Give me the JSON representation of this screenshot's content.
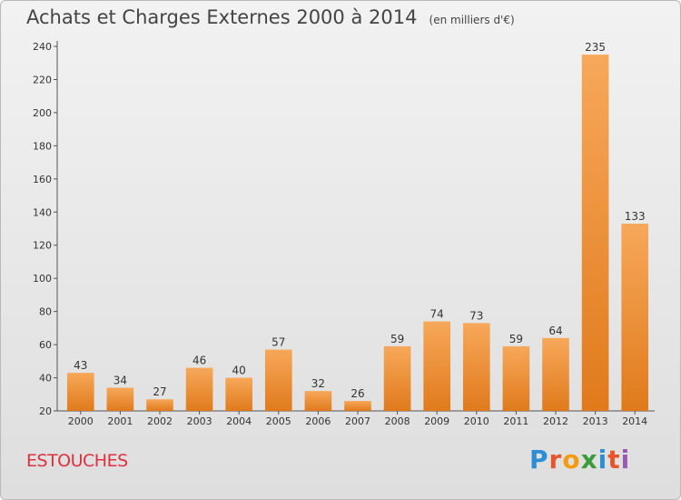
{
  "header": {
    "title": "Achats et Charges Externes 2000 à 2014",
    "unit": "(en milliers d'€)"
  },
  "footer": {
    "place": "ESTOUCHES",
    "brand": "Proxiti",
    "brand_colors": [
      "#2c8fd6",
      "#e8552d",
      "#f39c12",
      "#3a9c3a",
      "#2c8fd6",
      "#e8552d",
      "#9b59b6"
    ]
  },
  "colors": {
    "bar_light": "#f7a85a",
    "bar_dark": "#e07a1c",
    "axis": "#555555",
    "title": "#444444",
    "place": "#e0303e"
  },
  "chart_data": {
    "type": "bar",
    "title": "Achats et Charges Externes 2000 à 2014",
    "subtitle": "(en milliers d'€)",
    "xlabel": "",
    "ylabel": "",
    "categories": [
      "2000",
      "2001",
      "2002",
      "2003",
      "2004",
      "2005",
      "2006",
      "2007",
      "2008",
      "2009",
      "2010",
      "2011",
      "2012",
      "2013",
      "2014"
    ],
    "values": [
      43,
      34,
      27,
      46,
      40,
      57,
      32,
      26,
      59,
      74,
      73,
      59,
      64,
      235,
      133
    ],
    "ylim": [
      20,
      240
    ],
    "yticks": [
      20,
      40,
      60,
      80,
      100,
      120,
      140,
      160,
      180,
      200,
      220,
      240
    ],
    "grid": false,
    "data_labels": true
  }
}
